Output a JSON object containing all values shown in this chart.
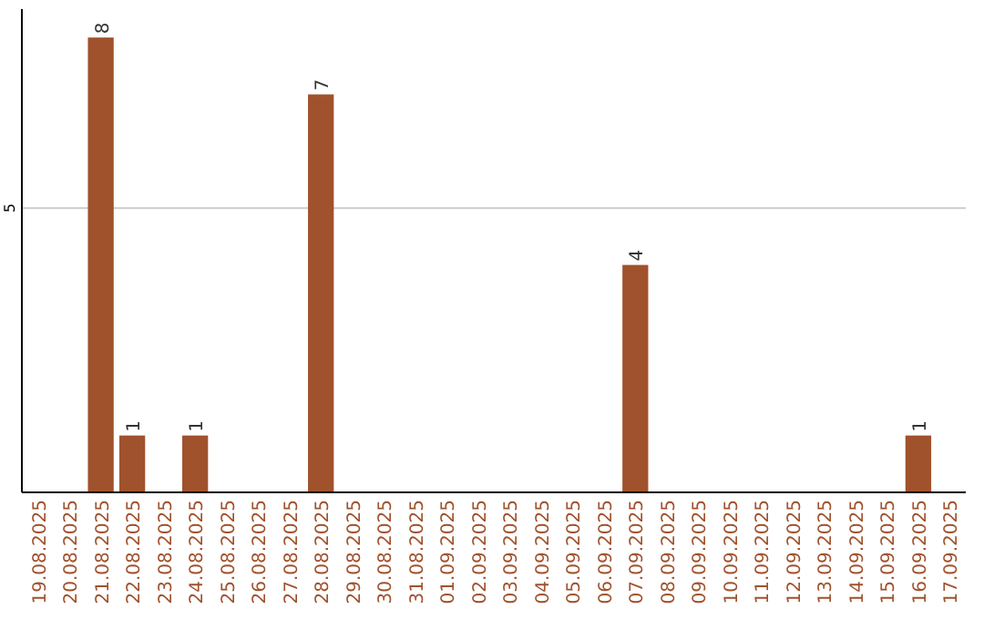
{
  "chart_data": {
    "type": "bar",
    "categories": [
      "19.08.2025",
      "20.08.2025",
      "21.08.2025",
      "22.08.2025",
      "23.08.2025",
      "24.08.2025",
      "25.08.2025",
      "26.08.2025",
      "27.08.2025",
      "28.08.2025",
      "29.08.2025",
      "30.08.2025",
      "31.08.2025",
      "01.09.2025",
      "02.09.2025",
      "03.09.2025",
      "04.09.2025",
      "05.09.2025",
      "06.09.2025",
      "07.09.2025",
      "08.09.2025",
      "09.09.2025",
      "10.09.2025",
      "11.09.2025",
      "12.09.2025",
      "13.09.2025",
      "14.09.2025",
      "15.09.2025",
      "16.09.2025",
      "17.09.2025"
    ],
    "values": [
      0,
      0,
      8,
      1,
      0,
      1,
      0,
      0,
      0,
      7,
      0,
      0,
      0,
      0,
      0,
      0,
      0,
      0,
      0,
      4,
      0,
      0,
      0,
      0,
      0,
      0,
      0,
      0,
      1,
      0
    ],
    "value_labels": [
      null,
      null,
      "8",
      "1",
      null,
      "1",
      null,
      null,
      null,
      "7",
      null,
      null,
      null,
      null,
      null,
      null,
      null,
      null,
      null,
      "4",
      null,
      null,
      null,
      null,
      null,
      null,
      null,
      null,
      "1",
      null
    ],
    "color": "#a0522d",
    "ylim": [
      0,
      8.5
    ],
    "yticks": [
      5
    ],
    "grid": "y"
  }
}
